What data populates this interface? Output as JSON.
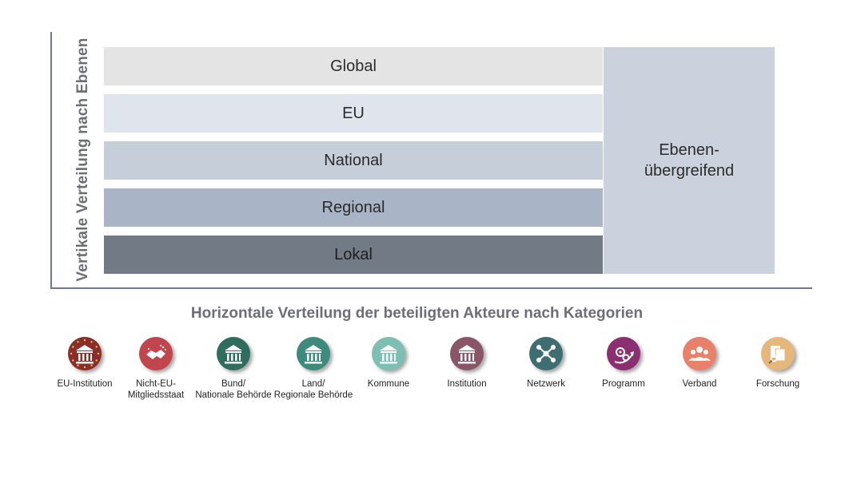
{
  "vertical_axis_label": "Vertikale Verteilung nach Ebenen",
  "levels": [
    "Global",
    "EU",
    "National",
    "Regional",
    "Lokal"
  ],
  "cross_level": [
    "Ebenen-",
    "übergreifend"
  ],
  "horizontal_title": "Horizontale Verteilung der beteiligten Akteure nach Kategorien",
  "categories": [
    {
      "lines": [
        "EU-Institution"
      ],
      "color": "#8b2d2d",
      "icon": "eu-building-icon"
    },
    {
      "lines": [
        "Nicht-EU-",
        "Mitgliedsstaat"
      ],
      "color": "#c0454c",
      "icon": "handshake-icon"
    },
    {
      "lines": [
        "Bund/",
        "Nationale Behörde"
      ],
      "color": "#2f6e5f",
      "icon": "building-icon"
    },
    {
      "lines": [
        "Land/",
        "Regionale Behörde"
      ],
      "color": "#3d8b7c",
      "icon": "building-icon"
    },
    {
      "lines": [
        "Kommune"
      ],
      "color": "#7dc0b3",
      "icon": "building-icon"
    },
    {
      "lines": [
        "Institution"
      ],
      "color": "#8a5566",
      "icon": "building-icon"
    },
    {
      "lines": [
        "Netzwerk"
      ],
      "color": "#3f6e72",
      "icon": "network-icon"
    },
    {
      "lines": [
        "Programm"
      ],
      "color": "#8c2f72",
      "icon": "gears-arrow-icon"
    },
    {
      "lines": [
        "Verband"
      ],
      "color": "#e8806a",
      "icon": "group-icon"
    },
    {
      "lines": [
        "Forschung"
      ],
      "color": "#e6b77a",
      "icon": "documents-search-icon"
    }
  ]
}
